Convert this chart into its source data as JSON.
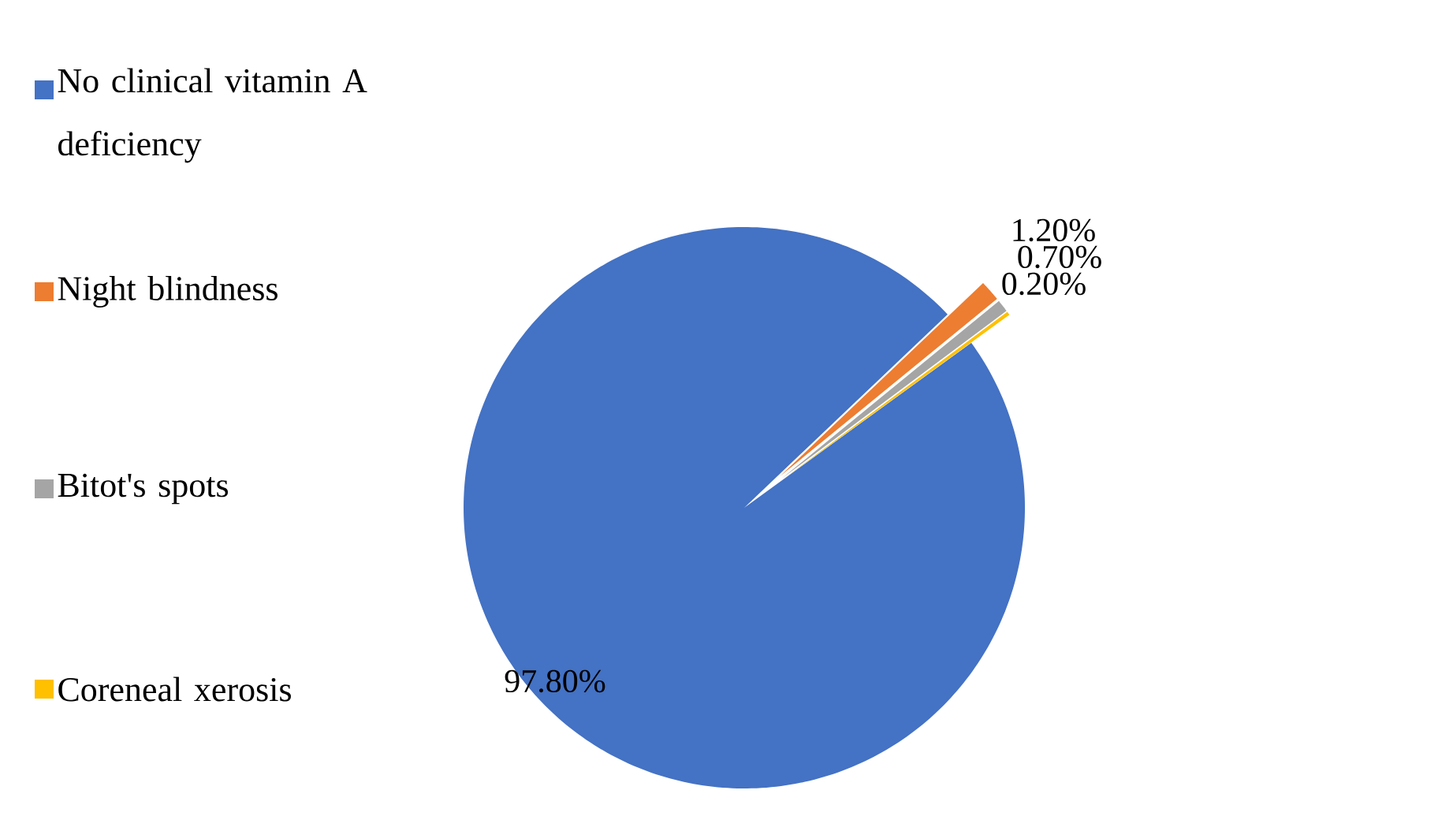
{
  "chart_data": {
    "type": "pie",
    "categories": [
      "No clinical vitamin A deficiency",
      "Night blindness",
      "Bitot's spots",
      "Coreneal xerosis"
    ],
    "values": [
      97.8,
      1.2,
      0.7,
      0.2
    ],
    "colors": [
      "#4472c4",
      "#ed7d31",
      "#a5a5a5",
      "#ffc000"
    ],
    "value_labels": [
      "97.80%",
      "1.20%",
      "0.70%",
      "0.20%"
    ],
    "legend": "left"
  }
}
